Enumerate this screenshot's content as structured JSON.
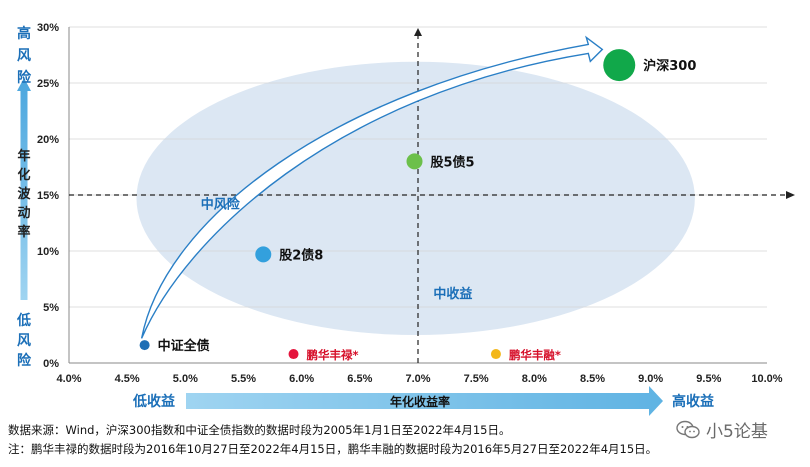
{
  "chart_data": {
    "type": "scatter",
    "x_axis": {
      "min": 4.0,
      "max": 10.0,
      "step": 0.5,
      "tick_labels": [
        "4.0%",
        "4.5%",
        "5.0%",
        "5.5%",
        "6.0%",
        "6.5%",
        "7.0%",
        "7.5%",
        "8.0%",
        "8.5%",
        "9.0%",
        "9.5%",
        "10.0%"
      ],
      "title": "年化收益率",
      "low_label": "低收益",
      "high_label": "高收益"
    },
    "y_axis": {
      "min": 0,
      "max": 30,
      "step": 5,
      "tick_labels": [
        "0%",
        "5%",
        "10%",
        "15%",
        "20%",
        "25%",
        "30%"
      ],
      "title": "年化波动率",
      "high_label": "高风险",
      "low_label": "低风险"
    },
    "reference_lines": {
      "x": 7.0,
      "y": 15
    },
    "points": [
      {
        "name": "中证全债",
        "x": 4.65,
        "y": 1.6,
        "color": "#1f6fb5",
        "size": "small"
      },
      {
        "name": "股2债8",
        "x": 5.67,
        "y": 9.7,
        "color": "#33a0dd",
        "size": "medium"
      },
      {
        "name": "股5债5",
        "x": 6.97,
        "y": 18.0,
        "color": "#6cc04a",
        "size": "medium"
      },
      {
        "name": "沪深300",
        "x": 8.73,
        "y": 26.6,
        "color": "#11a84a",
        "size": "large"
      },
      {
        "name": "鹏华丰禄*",
        "x": 5.93,
        "y": 0.8,
        "color": "#e5153d",
        "size": "small"
      },
      {
        "name": "鹏华丰融*",
        "x": 7.67,
        "y": 0.8,
        "color": "#f3b71a",
        "size": "small"
      }
    ],
    "zones": [
      {
        "label": "中风险",
        "x": 5.3,
        "y": 13.8
      },
      {
        "label": "中收益",
        "x": 7.3,
        "y": 5.8
      }
    ],
    "ellipse": {
      "center_x": 6.98,
      "center_y": 14.7,
      "radius_x": 2.4,
      "radius_y": 12.2,
      "color": "#dce7f3"
    },
    "trend_arrow": {
      "from": [
        4.65,
        2.2
      ],
      "to": [
        8.55,
        28.0
      ],
      "color": "#2a7fc6"
    }
  },
  "notes": [
    "数据来源：Wind，沪深300指数和中证全债指数的数据时段为2005年1月1日至2022年4月15日。",
    "注：鹏华丰禄的数据时段为2016年10月27日至2022年4月15日，鹏华丰融的数据时段为2016年5月27日至2022年4月15日。"
  ],
  "watermark": "小5论基",
  "colors": {
    "axis_arrow": "#7cc3ec",
    "side_arrow": "#5fb3e3",
    "accent_blue": "#1b6fb8"
  }
}
